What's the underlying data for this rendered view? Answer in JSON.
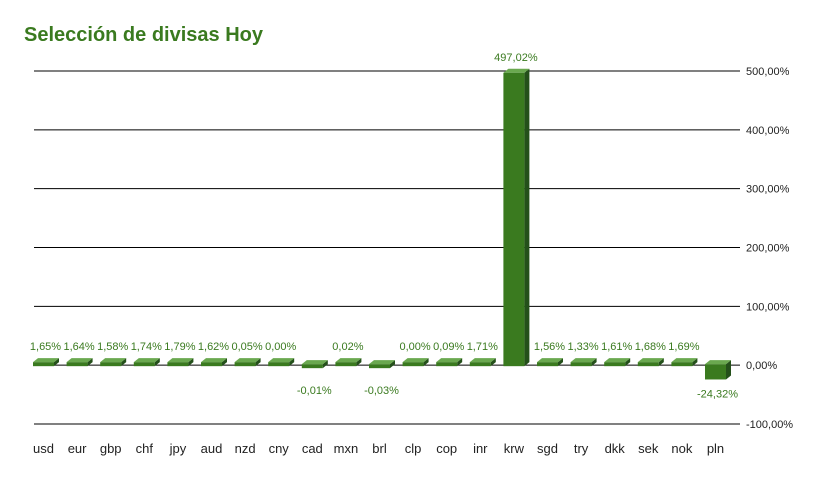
{
  "chart_data": {
    "type": "bar",
    "title": "Selección de divisas Hoy",
    "categories": [
      "usd",
      "eur",
      "gbp",
      "chf",
      "jpy",
      "aud",
      "nzd",
      "cny",
      "cad",
      "mxn",
      "brl",
      "clp",
      "cop",
      "inr",
      "krw",
      "sgd",
      "try",
      "dkk",
      "sek",
      "nok",
      "pln"
    ],
    "values": [
      1.65,
      1.64,
      1.58,
      1.74,
      1.79,
      1.62,
      0.05,
      0.0,
      -0.01,
      0.02,
      -0.03,
      0.0,
      0.09,
      1.71,
      497.02,
      1.56,
      1.33,
      1.61,
      1.68,
      1.69,
      -24.32
    ],
    "data_labels": [
      "1,65%",
      "1,64%",
      "1,58%",
      "1,74%",
      "1,79%",
      "1,62%",
      "0,05%",
      "0,00%",
      "-0,01%",
      "0,02%",
      "-0,03%",
      "0,00%",
      "0,09%",
      "1,71%",
      "497,02%",
      "1,56%",
      "1,33%",
      "1,61%",
      "1,68%",
      "1,69%",
      "-24,32%"
    ],
    "ylim": [
      -100,
      500
    ],
    "yticks": [
      500,
      400,
      300,
      200,
      100,
      0,
      -100
    ],
    "ytick_labels": [
      "500,00%",
      "400,00%",
      "300,00%",
      "200,00%",
      "100,00%",
      "0,00%",
      "-100,00%"
    ],
    "y_axis_side": "right",
    "grid": true,
    "bar_color": "#3a7a1f",
    "bar_top_color": "#6aa84f",
    "bar_side_color": "#24501a",
    "title_color": "#3a7a1f"
  }
}
